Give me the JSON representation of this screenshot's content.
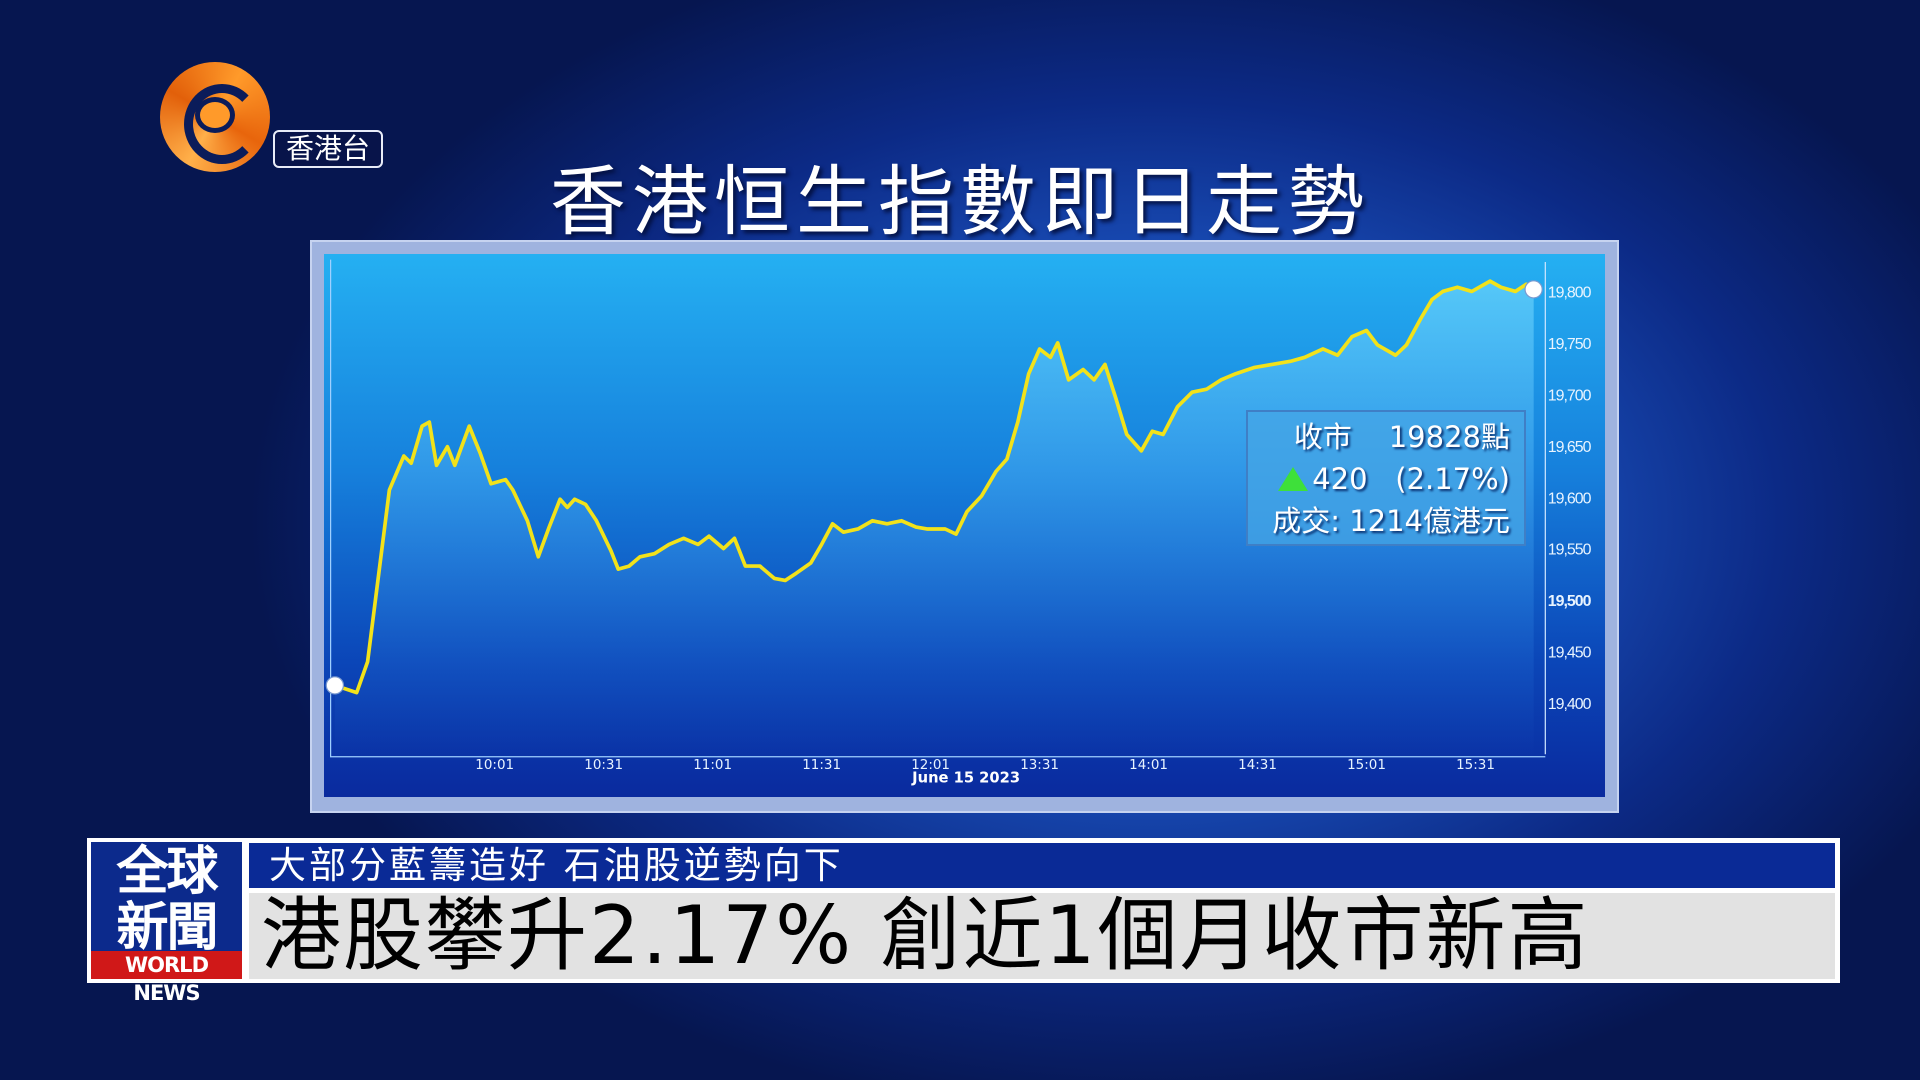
{
  "channel": {
    "name": "香港台",
    "logo": "phoenix-logo"
  },
  "title": "香港恒生指數即日走勢",
  "info_box": {
    "close_label": "收市",
    "close_value": "19828點",
    "change": "420",
    "change_pct": "(2.17%)",
    "turnover": "成交: 1214億港元",
    "up_color": "#3ee03a"
  },
  "lower_third": {
    "brand_line1": "全球",
    "brand_line2": "新聞",
    "brand_en": "WORLD NEWS",
    "subtitle": "大部分藍籌造好 石油股逆勢向下",
    "headline": "港股攀升2.17% 創近1個月收市新高"
  },
  "chart_data": {
    "type": "line",
    "xlabel": "June 15 2023",
    "x_ticks": [
      "10:01",
      "10:31",
      "11:01",
      "11:31",
      "12:01",
      "13:31",
      "14:01",
      "14:31",
      "15:01",
      "15:31"
    ],
    "y_ticks": [
      "19,400",
      "19,450",
      "19,500",
      "19,550",
      "19,600",
      "19,650",
      "19,700",
      "19,750",
      "19,800"
    ],
    "ylim": [
      19380,
      19830
    ],
    "line_color": "#f2e21a",
    "points": [
      [
        "09:17",
        19417
      ],
      [
        "09:23",
        19410
      ],
      [
        "09:26",
        19440
      ],
      [
        "09:32",
        19607
      ],
      [
        "09:36",
        19640
      ],
      [
        "09:38",
        19633
      ],
      [
        "09:41",
        19669
      ],
      [
        "09:43",
        19673
      ],
      [
        "09:45",
        19631
      ],
      [
        "09:48",
        19649
      ],
      [
        "09:50",
        19631
      ],
      [
        "09:54",
        19669
      ],
      [
        "09:57",
        19643
      ],
      [
        "10:00",
        19613
      ],
      [
        "10:04",
        19617
      ],
      [
        "10:06",
        19607
      ],
      [
        "10:10",
        19577
      ],
      [
        "10:13",
        19542
      ],
      [
        "10:16",
        19571
      ],
      [
        "10:19",
        19598
      ],
      [
        "10:21",
        19590
      ],
      [
        "10:23",
        19598
      ],
      [
        "10:26",
        19593
      ],
      [
        "10:29",
        19577
      ],
      [
        "10:33",
        19548
      ],
      [
        "10:35",
        19530
      ],
      [
        "10:38",
        19533
      ],
      [
        "10:41",
        19542
      ],
      [
        "10:45",
        19545
      ],
      [
        "10:49",
        19554
      ],
      [
        "10:53",
        19560
      ],
      [
        "10:57",
        19554
      ],
      [
        "11:00",
        19562
      ],
      [
        "11:04",
        19550
      ],
      [
        "11:07",
        19560
      ],
      [
        "11:10",
        19533
      ],
      [
        "11:14",
        19533
      ],
      [
        "11:18",
        19521
      ],
      [
        "11:21",
        19519
      ],
      [
        "11:24",
        19526
      ],
      [
        "11:28",
        19536
      ],
      [
        "11:31",
        19554
      ],
      [
        "11:34",
        19574
      ],
      [
        "11:37",
        19566
      ],
      [
        "11:41",
        19569
      ],
      [
        "11:45",
        19577
      ],
      [
        "11:49",
        19574
      ],
      [
        "11:53",
        19577
      ],
      [
        "11:57",
        19571
      ],
      [
        "12:00",
        19569
      ],
      [
        "13:05",
        19569
      ],
      [
        "13:08",
        19564
      ],
      [
        "13:11",
        19586
      ],
      [
        "13:15",
        19601
      ],
      [
        "13:19",
        19625
      ],
      [
        "13:22",
        19637
      ],
      [
        "13:25",
        19673
      ],
      [
        "13:28",
        19720
      ],
      [
        "13:31",
        19744
      ],
      [
        "13:34",
        19736
      ],
      [
        "13:36",
        19750
      ],
      [
        "13:39",
        19714
      ],
      [
        "13:43",
        19724
      ],
      [
        "13:46",
        19714
      ],
      [
        "13:49",
        19729
      ],
      [
        "13:52",
        19696
      ],
      [
        "13:55",
        19661
      ],
      [
        "13:59",
        19645
      ],
      [
        "14:02",
        19664
      ],
      [
        "14:05",
        19661
      ],
      [
        "14:09",
        19688
      ],
      [
        "14:13",
        19702
      ],
      [
        "14:17",
        19705
      ],
      [
        "14:21",
        19714
      ],
      [
        "14:25",
        19720
      ],
      [
        "14:30",
        19726
      ],
      [
        "14:35",
        19729
      ],
      [
        "14:40",
        19732
      ],
      [
        "14:44",
        19736
      ],
      [
        "14:49",
        19744
      ],
      [
        "14:53",
        19738
      ],
      [
        "14:57",
        19756
      ],
      [
        "15:01",
        19762
      ],
      [
        "15:04",
        19748
      ],
      [
        "15:09",
        19738
      ],
      [
        "15:12",
        19748
      ],
      [
        "15:16",
        19774
      ],
      [
        "15:19",
        19792
      ],
      [
        "15:22",
        19800
      ],
      [
        "15:26",
        19804
      ],
      [
        "15:30",
        19800
      ],
      [
        "15:35",
        19810
      ],
      [
        "15:38",
        19804
      ],
      [
        "15:42",
        19800
      ],
      [
        "15:45",
        19807
      ],
      [
        "15:47",
        19802
      ]
    ]
  }
}
